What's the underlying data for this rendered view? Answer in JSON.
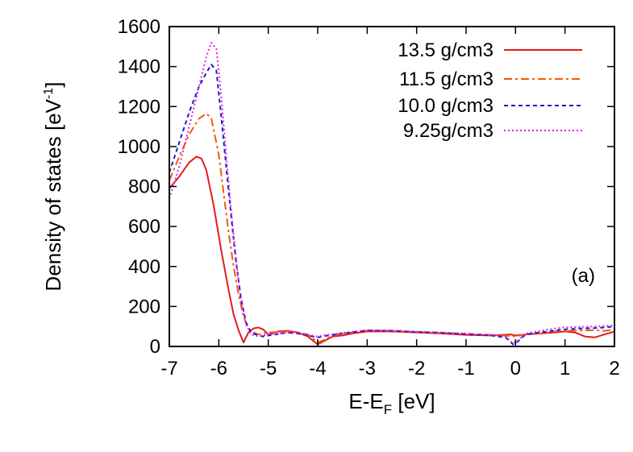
{
  "chart_data": {
    "type": "line",
    "title": "",
    "xlabel": "E-E",
    "xlabel_sub": "F",
    "xlabel_unit": " [eV]",
    "ylabel": "Density of states [eV",
    "ylabel_sup": "-1",
    "ylabel_close": "]",
    "xlim": [
      -7,
      2
    ],
    "ylim": [
      0,
      1600
    ],
    "xticks": [
      -7,
      -6,
      -5,
      -4,
      -3,
      -2,
      -1,
      0,
      1,
      2
    ],
    "xtick_labels": [
      "-7",
      "-6",
      "-5",
      "-4",
      "-3",
      "-2",
      "-1",
      "0",
      "1",
      "2"
    ],
    "yticks": [
      0,
      200,
      400,
      600,
      800,
      1000,
      1200,
      1400,
      1600
    ],
    "ytick_labels": [
      "0",
      "200",
      "400",
      "600",
      "800",
      "1000",
      "1200",
      "1400",
      "1600"
    ],
    "grid": false,
    "legend_position": "top-right",
    "annotation": "(a)",
    "series": [
      {
        "name": "13.5 g/cm3",
        "color": "#e41a1c",
        "dash": "solid",
        "x": [
          -7.0,
          -6.8,
          -6.6,
          -6.45,
          -6.35,
          -6.25,
          -6.1,
          -5.95,
          -5.8,
          -5.7,
          -5.6,
          -5.5,
          -5.4,
          -5.3,
          -5.2,
          -5.1,
          -5.0,
          -4.8,
          -4.6,
          -4.4,
          -4.2,
          -4.0,
          -3.85,
          -3.7,
          -3.5,
          -3.3,
          -3.0,
          -2.5,
          -2.0,
          -1.5,
          -1.0,
          -0.5,
          -0.1,
          0.0,
          0.2,
          0.5,
          0.8,
          1.0,
          1.2,
          1.4,
          1.6,
          1.8,
          2.0
        ],
        "y": [
          790,
          850,
          920,
          950,
          940,
          880,
          700,
          480,
          280,
          160,
          80,
          20,
          70,
          90,
          95,
          85,
          60,
          75,
          78,
          70,
          50,
          10,
          30,
          50,
          55,
          65,
          75,
          75,
          70,
          65,
          58,
          55,
          60,
          55,
          60,
          65,
          70,
          75,
          70,
          50,
          45,
          60,
          75
        ]
      },
      {
        "name": "11.5 g/cm3",
        "color": "#f05a0a",
        "dash": "dashdot",
        "x": [
          -7.0,
          -6.8,
          -6.6,
          -6.4,
          -6.25,
          -6.15,
          -6.0,
          -5.9,
          -5.8,
          -5.7,
          -5.6,
          -5.5,
          -5.4,
          -5.3,
          -5.2,
          -5.1,
          -5.0,
          -4.8,
          -4.6,
          -4.4,
          -4.2,
          -4.0,
          -3.85,
          -3.7,
          -3.5,
          -3.3,
          -3.0,
          -2.5,
          -2.0,
          -1.5,
          -1.0,
          -0.5,
          -0.1,
          0.0,
          0.2,
          0.5,
          0.8,
          1.0,
          1.3,
          1.6,
          1.8,
          2.0
        ],
        "y": [
          830,
          950,
          1060,
          1140,
          1165,
          1140,
          960,
          760,
          570,
          400,
          260,
          150,
          90,
          70,
          60,
          65,
          70,
          72,
          75,
          70,
          60,
          20,
          35,
          55,
          65,
          70,
          80,
          78,
          72,
          68,
          62,
          58,
          52,
          50,
          60,
          65,
          75,
          78,
          80,
          82,
          78,
          85
        ]
      },
      {
        "name": "10.0 g/cm3",
        "color": "#1a1acc",
        "dash": "dashed",
        "x": [
          -7.0,
          -6.8,
          -6.6,
          -6.4,
          -6.25,
          -6.15,
          -6.05,
          -5.95,
          -5.85,
          -5.75,
          -5.65,
          -5.55,
          -5.45,
          -5.35,
          -5.2,
          -5.1,
          -5.0,
          -4.8,
          -4.6,
          -4.4,
          -4.2,
          -4.0,
          -3.8,
          -3.5,
          -3.0,
          -2.5,
          -2.0,
          -1.5,
          -1.0,
          -0.5,
          -0.2,
          -0.05,
          0.05,
          0.2,
          0.5,
          0.8,
          1.0,
          1.3,
          1.6,
          1.8,
          2.0
        ],
        "y": [
          870,
          1020,
          1170,
          1300,
          1370,
          1410,
          1380,
          1150,
          900,
          650,
          420,
          240,
          120,
          70,
          55,
          50,
          55,
          62,
          70,
          65,
          55,
          45,
          55,
          65,
          80,
          78,
          72,
          68,
          62,
          55,
          45,
          10,
          25,
          60,
          70,
          80,
          85,
          90,
          92,
          95,
          100
        ]
      },
      {
        "name": "9.25g/cm3",
        "color": "#e020e0",
        "dash": "dotted",
        "x": [
          -7.0,
          -6.8,
          -6.6,
          -6.4,
          -6.25,
          -6.15,
          -6.05,
          -5.95,
          -5.85,
          -5.75,
          -5.65,
          -5.55,
          -5.45,
          -5.35,
          -5.2,
          -5.1,
          -5.0,
          -4.8,
          -4.6,
          -4.4,
          -4.2,
          -4.0,
          -3.8,
          -3.5,
          -3.0,
          -2.5,
          -2.0,
          -1.5,
          -1.0,
          -0.5,
          -0.2,
          -0.05,
          0.05,
          0.2,
          0.5,
          0.8,
          1.0,
          1.3,
          1.6,
          1.8,
          2.0
        ],
        "y": [
          740,
          900,
          1100,
          1300,
          1450,
          1520,
          1490,
          1250,
          960,
          680,
          430,
          230,
          110,
          60,
          50,
          55,
          60,
          65,
          68,
          64,
          58,
          50,
          58,
          68,
          82,
          80,
          75,
          70,
          65,
          58,
          50,
          15,
          30,
          65,
          78,
          90,
          95,
          98,
          100,
          102,
          105
        ]
      }
    ]
  }
}
